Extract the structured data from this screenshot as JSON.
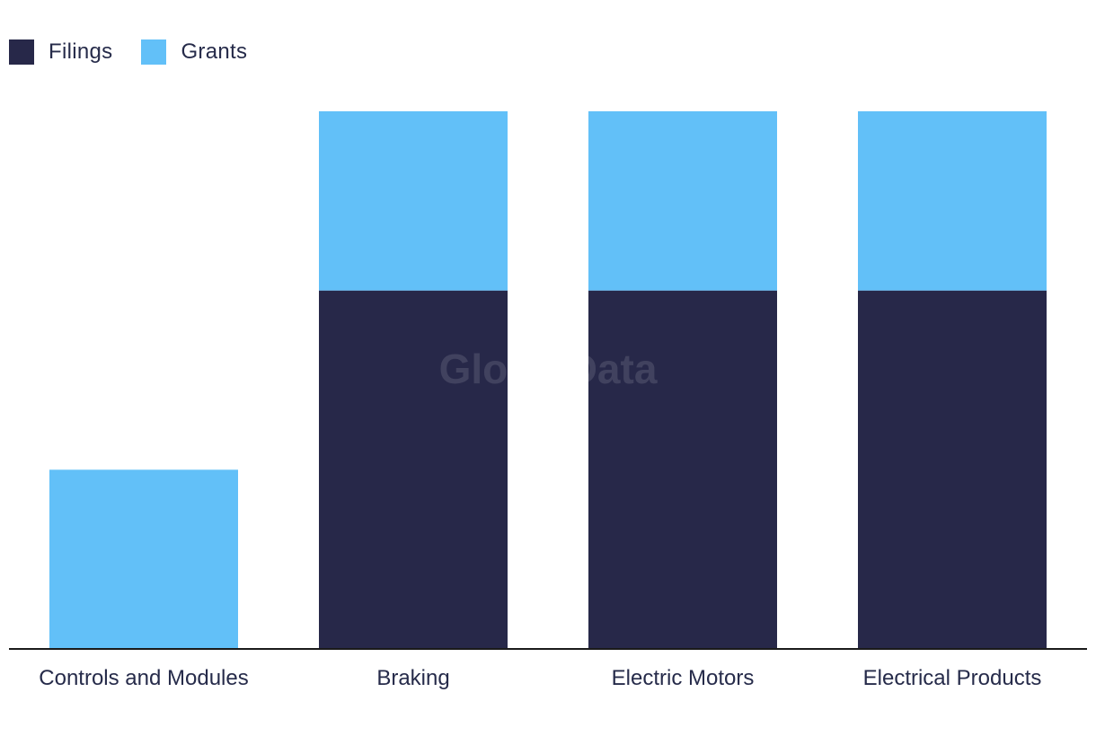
{
  "legend": {
    "items": [
      {
        "label": "Filings",
        "color": "#272849"
      },
      {
        "label": "Grants",
        "color": "#62c0f8"
      }
    ]
  },
  "watermark": "GlobalData",
  "chart_data": {
    "type": "bar",
    "stacked": true,
    "categories": [
      "Controls and Modules",
      "Braking",
      "Electric Motors",
      "Electrical Products"
    ],
    "series": [
      {
        "name": "Filings",
        "color": "#272849",
        "values": [
          0,
          2,
          2,
          2
        ]
      },
      {
        "name": "Grants",
        "color": "#62c0f8",
        "values": [
          1,
          1,
          1,
          1
        ]
      }
    ],
    "ylim": [
      0,
      3
    ],
    "xlabel": "",
    "ylabel": "",
    "grid": false,
    "legend_position": "top-left"
  }
}
